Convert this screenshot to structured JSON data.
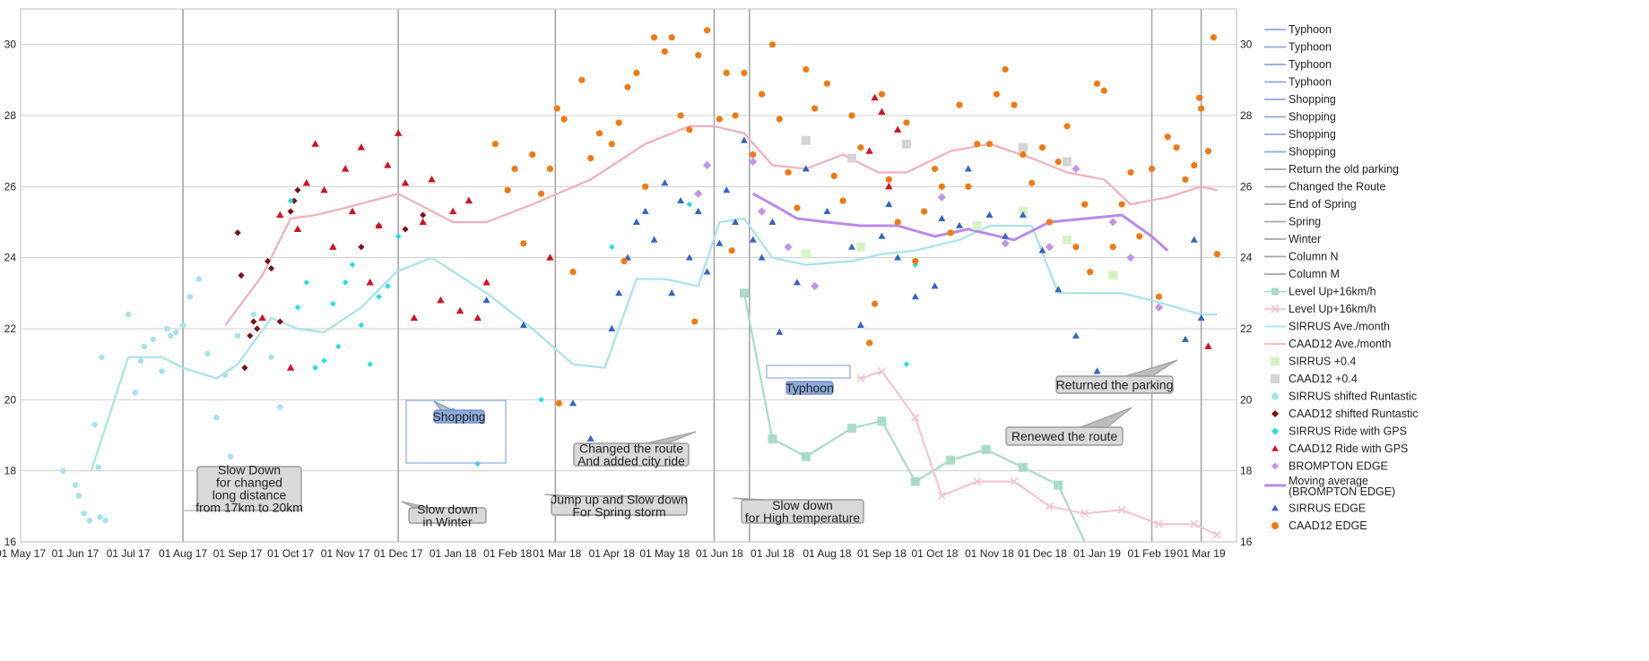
{
  "chart_data": {
    "type": "scatter",
    "title": "",
    "xlabel": "",
    "ylabel": "",
    "ylim": [
      16,
      31
    ],
    "xlim": [
      "2017-05-01",
      "2019-03-21"
    ],
    "y_ticks": [
      "16",
      "18",
      "20",
      "22",
      "24",
      "26",
      "28",
      "30"
    ],
    "x_ticks": [
      "01 May 17",
      "01 Jun 17",
      "01 Jul 17",
      "01 Aug 17",
      "01 Sep 17",
      "01 Oct 17",
      "01 Nov 17",
      "01 Dec 17",
      "01 Jan 18",
      "01 Feb 18",
      "01 Mar 18",
      "01 Apr 18",
      "01 May 18",
      "01 Jun 18",
      "01 Jul 18",
      "01 Aug 18",
      "01 Sep 18",
      "01 Oct 18",
      "01 Nov 18",
      "01 Dec 18",
      "01 Jan 19",
      "01 Feb 19",
      "01 Mar 19"
    ],
    "grid": true,
    "legend_position": "right",
    "colors": {
      "typhoon": "#8eaadb",
      "shopping": "#8eaadb",
      "event": "#a6a6a6",
      "level_up_sirrus": "#a9dcc7",
      "level_up_caad": "#f4c2cd",
      "sirrus_ave": "#a7e3e8",
      "caad_ave": "#f2aebb",
      "sirrus_plus": "#d6f3c6",
      "caad_plus": "#d4d4d4",
      "sirrus_shifted": "#a7e3e8",
      "caad_shifted": "#7b1019",
      "sirrus_gps": "#19dfea",
      "caad_gps": "#d11220",
      "brompton": "#c195e6",
      "brompton_ma": "#b98ae8",
      "sirrus_edge": "#3465c4",
      "caad_edge": "#f07a10"
    },
    "vlines": [
      {
        "name": "Typhoon",
        "x": "2017-08-01"
      },
      {
        "name": "Typhoon",
        "x": "2017-12-01"
      },
      {
        "name": "Typhoon",
        "x": "2018-02-28"
      },
      {
        "name": "Typhoon",
        "x": "2018-05-29"
      },
      {
        "name": "Changed the Route",
        "x": "2018-06-18"
      },
      {
        "name": "Spring",
        "x": "2019-02-01"
      },
      {
        "name": "Return the old parking",
        "x": "2019-03-01"
      }
    ],
    "legend": [
      "Typhoon",
      "Typhoon",
      "Typhoon",
      "Typhoon",
      "Shopping",
      "Shopping",
      "Shopping",
      "Shopping",
      "Return the old parking",
      "Changed the Route",
      "End of Spring",
      "Spring",
      "Winter",
      "Column N",
      "Column M",
      "Level Up+16km/h",
      "Level Up+16km/h",
      "SIRRUS Ave./month",
      "CAAD12 Ave./month",
      "SIRRUS +0.4",
      "CAAD12 +0.4",
      "SIRRUS shifted Runtastic",
      "CAAD12 shifted Runtastic",
      "SIRRUS Ride with GPS",
      "CAAD12 Ride with GPS",
      "BROMPTON EDGE",
      "Moving average (BROMPTON EDGE)",
      "SIRRUS EDGE",
      "CAAD12 EDGE"
    ],
    "annotations": [
      {
        "text": "Slow Down\nfor changed\nlong distance\nfrom 17km to 20km"
      },
      {
        "text": "Shopping"
      },
      {
        "text": "Slow down\nin Winter"
      },
      {
        "text": "Changed the route\nAnd added city ride"
      },
      {
        "text": "Jump up and Slow down\nFor Spring storm"
      },
      {
        "text": "Slow down\nfor High temperature"
      },
      {
        "text": "Typhoon"
      },
      {
        "text": "Renewed the route"
      },
      {
        "text": "Returned the parking"
      }
    ],
    "series": [
      {
        "name": "SIRRUS Ave./month",
        "kind": "line",
        "x": [
          "2017-06-10",
          "2017-07-01",
          "2017-07-20",
          "2017-08-01",
          "2017-08-20",
          "2017-09-01",
          "2017-09-20",
          "2017-10-05",
          "2017-10-20",
          "2017-11-10",
          "2017-11-30",
          "2017-12-20",
          "2018-01-20",
          "2018-02-15",
          "2018-03-10",
          "2018-03-28",
          "2018-04-15",
          "2018-05-01",
          "2018-05-20",
          "2018-06-01",
          "2018-06-15",
          "2018-07-01",
          "2018-07-20",
          "2018-08-15",
          "2018-09-01",
          "2018-09-20",
          "2018-10-15",
          "2018-11-01",
          "2018-11-25",
          "2018-12-10",
          "2018-12-25",
          "2019-01-15",
          "2019-02-01",
          "2019-03-01",
          "2019-03-10"
        ],
        "y": [
          18.0,
          21.2,
          21.2,
          20.9,
          20.6,
          21.0,
          22.3,
          22.0,
          21.9,
          22.6,
          23.6,
          24.0,
          23.0,
          22.0,
          21.0,
          20.9,
          23.4,
          23.4,
          23.2,
          25.0,
          25.1,
          24.0,
          23.8,
          23.9,
          24.1,
          24.2,
          24.5,
          24.9,
          24.9,
          23.0,
          23.0,
          23.0,
          22.8,
          22.4,
          22.4
        ]
      },
      {
        "name": "CAAD12 Ave./month",
        "kind": "line",
        "x": [
          "2017-08-25",
          "2017-09-15",
          "2017-10-01",
          "2017-10-15",
          "2017-11-01",
          "2017-12-01",
          "2018-01-01",
          "2018-01-20",
          "2018-02-15",
          "2018-03-20",
          "2018-04-20",
          "2018-05-15",
          "2018-05-29",
          "2018-06-15",
          "2018-07-01",
          "2018-07-20",
          "2018-08-10",
          "2018-08-30",
          "2018-09-15",
          "2018-10-10",
          "2018-11-01",
          "2018-11-25",
          "2018-12-15",
          "2019-01-05",
          "2019-01-20",
          "2019-02-10",
          "2019-03-01",
          "2019-03-10"
        ],
        "y": [
          22.1,
          23.5,
          25.1,
          25.2,
          25.4,
          25.8,
          25.0,
          25.0,
          25.5,
          26.2,
          27.2,
          27.7,
          27.7,
          27.5,
          26.6,
          26.5,
          26.9,
          26.4,
          26.4,
          27.0,
          27.2,
          26.8,
          26.4,
          26.2,
          25.5,
          25.7,
          26.0,
          25.9
        ]
      },
      {
        "name": "Moving average (BROMPTON EDGE)",
        "kind": "line",
        "x": [
          "2018-06-20",
          "2018-07-01",
          "2018-07-15",
          "2018-08-01",
          "2018-08-20",
          "2018-09-10",
          "2018-10-01",
          "2018-10-20",
          "2018-11-15",
          "2018-12-05",
          "2019-01-15",
          "2019-02-01",
          "2019-02-10"
        ],
        "y": [
          25.8,
          25.5,
          25.1,
          25.0,
          24.9,
          24.9,
          24.6,
          24.8,
          24.5,
          25.0,
          25.2,
          24.6,
          24.2
        ]
      },
      {
        "name": "Level Up+16km/h (SIRRUS)",
        "kind": "line-square",
        "x": [
          "2018-06-15",
          "2018-07-01",
          "2018-07-20",
          "2018-08-15",
          "2018-09-01",
          "2018-09-20",
          "2018-10-10",
          "2018-10-30",
          "2018-11-20",
          "2018-12-10",
          "2018-12-25"
        ],
        "y": [
          23.0,
          18.9,
          18.4,
          19.2,
          19.4,
          17.7,
          18.3,
          18.6,
          18.1,
          17.6,
          16.0
        ]
      },
      {
        "name": "Level Up+16km/h (CAAD12)",
        "kind": "line-x",
        "x": [
          "2018-08-20",
          "2018-09-01",
          "2018-09-20",
          "2018-10-05",
          "2018-10-25",
          "2018-11-15",
          "2018-12-05",
          "2018-12-25",
          "2019-01-15",
          "2019-02-05",
          "2019-02-25",
          "2019-03-10"
        ],
        "y": [
          20.6,
          20.8,
          19.5,
          17.3,
          17.7,
          17.7,
          17.0,
          16.8,
          16.9,
          16.5,
          16.5,
          16.2
        ]
      },
      {
        "name": "SIRRUS shifted Runtastic",
        "kind": "points",
        "x": [
          "2017-05-25",
          "2017-06-01",
          "2017-06-03",
          "2017-06-06",
          "2017-06-09",
          "2017-06-12",
          "2017-06-14",
          "2017-06-15",
          "2017-06-16",
          "2017-07-01",
          "2017-07-05",
          "2017-07-10",
          "2017-07-15",
          "2017-07-20",
          "2017-07-23",
          "2017-07-25",
          "2017-07-28",
          "2017-08-01",
          "2017-08-05",
          "2017-08-10",
          "2017-08-15",
          "2017-08-20",
          "2017-08-25",
          "2017-09-01",
          "2017-09-10",
          "2017-09-20",
          "2017-09-25",
          "2017-06-18",
          "2017-07-08",
          "2017-08-28"
        ],
        "y": [
          18.0,
          17.6,
          17.3,
          16.8,
          16.6,
          19.3,
          18.1,
          16.7,
          21.2,
          22.4,
          20.2,
          21.5,
          21.7,
          20.8,
          22.0,
          21.8,
          21.9,
          22.1,
          22.9,
          23.4,
          21.3,
          19.5,
          20.7,
          21.8,
          22.4,
          21.2,
          19.8,
          16.6,
          21.1,
          18.4
        ]
      },
      {
        "name": "CAAD12 shifted Runtastic",
        "kind": "points",
        "x": [
          "2017-09-01",
          "2017-09-03",
          "2017-09-05",
          "2017-09-08",
          "2017-09-10",
          "2017-09-12",
          "2017-09-18",
          "2017-09-20",
          "2017-09-25",
          "2017-10-01",
          "2017-10-03",
          "2017-10-05",
          "2017-11-10",
          "2017-11-20",
          "2017-12-05",
          "2017-12-15"
        ],
        "y": [
          24.7,
          23.5,
          20.9,
          21.8,
          22.2,
          22.0,
          23.9,
          23.7,
          22.2,
          25.3,
          25.6,
          25.9,
          24.3,
          24.9,
          24.8,
          25.2
        ]
      },
      {
        "name": "SIRRUS Ride with GPS",
        "kind": "points",
        "x": [
          "2017-10-01",
          "2017-10-05",
          "2017-10-10",
          "2017-10-15",
          "2017-10-20",
          "2017-10-25",
          "2017-10-28",
          "2017-11-01",
          "2017-11-05",
          "2017-11-10",
          "2017-11-15",
          "2017-11-20",
          "2017-11-25",
          "2017-12-01",
          "2018-01-01",
          "2018-01-15",
          "2018-02-20",
          "2018-04-01",
          "2018-05-15",
          "2018-09-15",
          "2018-09-20"
        ],
        "y": [
          25.6,
          22.6,
          23.3,
          20.9,
          21.1,
          22.7,
          21.5,
          23.3,
          23.8,
          22.1,
          21.0,
          22.9,
          23.2,
          24.6,
          19.7,
          18.2,
          20.0,
          24.3,
          25.5,
          21.0,
          23.8
        ]
      },
      {
        "name": "CAAD12 Ride with GPS",
        "kind": "points",
        "x": [
          "2017-09-15",
          "2017-09-25",
          "2017-10-01",
          "2017-10-05",
          "2017-10-10",
          "2017-10-15",
          "2017-10-20",
          "2017-10-25",
          "2017-11-01",
          "2017-11-05",
          "2017-11-10",
          "2017-11-15",
          "2017-11-20",
          "2017-11-25",
          "2017-12-01",
          "2017-12-05",
          "2017-12-10",
          "2017-12-15",
          "2017-12-20",
          "2017-12-25",
          "2018-01-01",
          "2018-01-05",
          "2018-01-10",
          "2018-01-15",
          "2018-01-20",
          "2018-02-25",
          "2018-08-25",
          "2018-08-28",
          "2018-09-01",
          "2018-09-05",
          "2018-09-10",
          "2019-03-05"
        ],
        "y": [
          22.3,
          25.2,
          20.9,
          24.8,
          26.1,
          27.2,
          25.9,
          24.3,
          26.5,
          25.3,
          27.1,
          23.3,
          24.9,
          26.6,
          27.5,
          26.1,
          22.3,
          25.0,
          26.2,
          22.8,
          25.3,
          22.5,
          25.6,
          22.3,
          23.3,
          24.0,
          27.0,
          28.5,
          28.1,
          26.0,
          27.6,
          21.5
        ]
      },
      {
        "name": "BROMPTON EDGE",
        "kind": "points",
        "x": [
          "2018-05-20",
          "2018-05-25",
          "2018-06-20",
          "2018-06-25",
          "2018-07-10",
          "2018-07-25",
          "2018-10-05",
          "2018-11-10",
          "2018-11-20",
          "2018-12-05",
          "2018-12-20",
          "2019-01-10",
          "2019-01-20",
          "2019-02-05"
        ],
        "y": [
          25.8,
          26.6,
          26.7,
          25.3,
          24.3,
          23.2,
          25.7,
          24.4,
          25.3,
          24.3,
          26.5,
          25.0,
          24.0,
          22.6
        ]
      },
      {
        "name": "SIRRUS +0.4",
        "kind": "points",
        "x": [
          "2018-07-20",
          "2018-08-20",
          "2018-10-25",
          "2018-11-20",
          "2018-12-15",
          "2019-01-10"
        ],
        "y": [
          24.1,
          24.3,
          24.9,
          25.3,
          24.5,
          23.5
        ]
      },
      {
        "name": "CAAD12 +0.4",
        "kind": "points",
        "x": [
          "2018-07-20",
          "2018-08-15",
          "2018-09-15",
          "2018-11-20",
          "2018-12-15"
        ],
        "y": [
          27.3,
          26.8,
          27.2,
          27.1,
          26.7
        ]
      },
      {
        "name": "SIRRUS EDGE",
        "kind": "points",
        "x": [
          "2018-01-20",
          "2018-02-10",
          "2018-03-10",
          "2018-03-20",
          "2018-04-01",
          "2018-04-05",
          "2018-04-10",
          "2018-04-15",
          "2018-04-20",
          "2018-04-25",
          "2018-05-01",
          "2018-05-05",
          "2018-05-10",
          "2018-05-15",
          "2018-05-20",
          "2018-05-25",
          "2018-06-01",
          "2018-06-05",
          "2018-06-10",
          "2018-06-15",
          "2018-06-20",
          "2018-06-25",
          "2018-07-01",
          "2018-07-05",
          "2018-07-15",
          "2018-07-20",
          "2018-08-01",
          "2018-08-15",
          "2018-08-20",
          "2018-09-01",
          "2018-09-05",
          "2018-09-10",
          "2018-09-20",
          "2018-10-01",
          "2018-10-05",
          "2018-10-15",
          "2018-10-20",
          "2018-11-01",
          "2018-11-10",
          "2018-11-20",
          "2018-12-01",
          "2018-12-10",
          "2018-12-20",
          "2019-01-01",
          "2019-02-20",
          "2019-03-01",
          "2019-02-25"
        ],
        "y": [
          22.8,
          22.1,
          19.9,
          18.9,
          22.0,
          23.0,
          24.0,
          25.0,
          25.3,
          24.5,
          26.1,
          23.0,
          25.6,
          24.0,
          25.3,
          23.6,
          24.4,
          25.9,
          25.0,
          27.3,
          24.5,
          24.0,
          25.0,
          21.9,
          23.3,
          26.5,
          25.3,
          24.3,
          22.1,
          24.6,
          25.5,
          24.0,
          22.9,
          23.2,
          25.1,
          24.9,
          26.5,
          25.2,
          24.6,
          25.2,
          24.2,
          23.1,
          21.8,
          20.8,
          21.7,
          22.3,
          24.5
        ]
      },
      {
        "name": "CAAD12 EDGE",
        "kind": "points",
        "x": [
          "2018-01-25",
          "2018-02-01",
          "2018-02-05",
          "2018-02-10",
          "2018-02-15",
          "2018-02-20",
          "2018-02-25",
          "2018-03-01",
          "2018-03-05",
          "2018-03-10",
          "2018-03-15",
          "2018-03-20",
          "2018-03-25",
          "2018-04-01",
          "2018-04-05",
          "2018-04-10",
          "2018-04-15",
          "2018-04-20",
          "2018-04-25",
          "2018-05-01",
          "2018-05-05",
          "2018-05-10",
          "2018-05-15",
          "2018-05-20",
          "2018-05-25",
          "2018-06-01",
          "2018-06-05",
          "2018-06-10",
          "2018-06-15",
          "2018-06-20",
          "2018-06-25",
          "2018-07-01",
          "2018-07-05",
          "2018-07-10",
          "2018-07-15",
          "2018-07-20",
          "2018-07-25",
          "2018-08-01",
          "2018-08-05",
          "2018-08-10",
          "2018-08-15",
          "2018-08-20",
          "2018-08-25",
          "2018-09-01",
          "2018-09-05",
          "2018-09-10",
          "2018-09-15",
          "2018-09-20",
          "2018-09-25",
          "2018-10-01",
          "2018-10-05",
          "2018-10-10",
          "2018-10-15",
          "2018-10-20",
          "2018-10-25",
          "2018-11-01",
          "2018-11-05",
          "2018-11-10",
          "2018-11-15",
          "2018-11-20",
          "2018-11-25",
          "2018-12-01",
          "2018-12-05",
          "2018-12-10",
          "2018-12-15",
          "2018-12-20",
          "2018-12-25",
          "2019-01-01",
          "2019-01-05",
          "2019-01-10",
          "2019-01-15",
          "2019-01-20",
          "2019-01-25",
          "2019-02-01",
          "2019-02-05",
          "2019-02-10",
          "2019-02-15",
          "2019-02-20",
          "2019-02-25",
          "2019-03-01",
          "2019-03-05",
          "2019-03-08",
          "2019-03-10",
          "2018-04-08",
          "2018-05-18",
          "2018-03-02",
          "2018-06-08",
          "2018-08-28",
          "2018-12-28",
          "2019-02-28"
        ],
        "y": [
          27.2,
          25.9,
          26.5,
          24.4,
          26.9,
          25.8,
          26.5,
          28.2,
          27.9,
          23.6,
          29.0,
          26.8,
          27.5,
          27.2,
          27.8,
          28.8,
          29.2,
          26.0,
          30.2,
          29.8,
          30.2,
          28.0,
          27.6,
          29.7,
          30.4,
          27.9,
          29.2,
          28.0,
          29.2,
          26.9,
          28.6,
          30.0,
          27.9,
          26.4,
          25.4,
          29.3,
          28.2,
          28.9,
          26.3,
          25.6,
          28.0,
          27.1,
          21.6,
          28.6,
          26.2,
          25.0,
          27.8,
          23.9,
          25.3,
          26.5,
          26.0,
          24.7,
          28.3,
          26.0,
          27.2,
          27.2,
          28.6,
          29.3,
          28.3,
          26.9,
          26.1,
          27.1,
          25.0,
          26.7,
          27.7,
          24.3,
          25.5,
          28.9,
          28.7,
          24.3,
          25.5,
          26.4,
          24.6,
          26.5,
          22.9,
          27.4,
          27.1,
          26.2,
          26.6,
          28.2,
          27.0,
          30.2,
          24.1,
          23.9,
          22.2,
          19.9,
          24.2,
          22.7,
          23.6,
          28.5
        ]
      }
    ]
  }
}
